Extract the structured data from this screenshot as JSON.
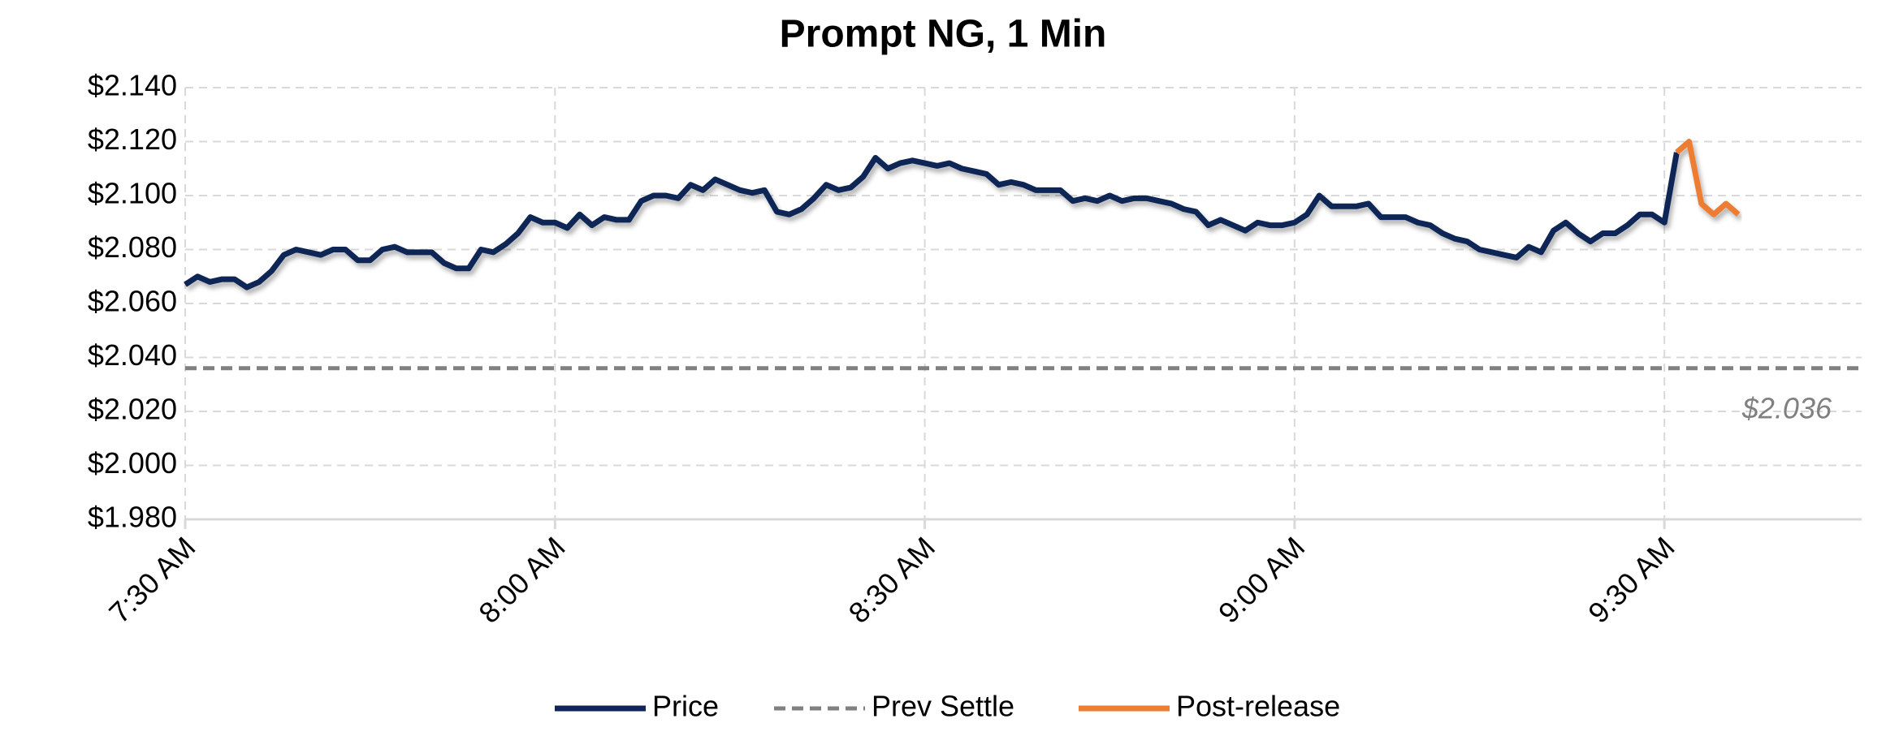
{
  "chart_data": {
    "type": "line",
    "title": "Prompt NG, 1 Min",
    "categories": [
      "7:30 AM",
      null,
      null,
      null,
      null,
      null,
      null,
      null,
      null,
      null,
      null,
      null,
      null,
      null,
      null,
      null,
      null,
      null,
      null,
      null,
      null,
      null,
      null,
      null,
      null,
      null,
      null,
      null,
      null,
      null,
      "8:00 AM",
      null,
      null,
      null,
      null,
      null,
      null,
      null,
      null,
      null,
      null,
      null,
      null,
      null,
      null,
      null,
      null,
      null,
      null,
      null,
      null,
      null,
      null,
      null,
      null,
      null,
      null,
      null,
      null,
      null,
      "8:30 AM",
      null,
      null,
      null,
      null,
      null,
      null,
      null,
      null,
      null,
      null,
      null,
      null,
      null,
      null,
      null,
      null,
      null,
      null,
      null,
      null,
      null,
      null,
      null,
      null,
      null,
      null,
      null,
      null,
      null,
      "9:00 AM",
      null,
      null,
      null,
      null,
      null,
      null,
      null,
      null,
      null,
      null,
      null,
      null,
      null,
      null,
      null,
      null,
      null,
      null,
      null,
      null,
      null,
      null,
      null,
      null,
      null,
      null,
      null,
      null,
      null,
      "9:30 AM",
      null,
      null,
      null,
      null,
      null,
      null,
      null,
      null,
      null,
      null,
      null,
      null,
      null,
      null,
      null,
      null
    ],
    "series": [
      {
        "name": "Price",
        "color": "#0f2557",
        "values": [
          2.067,
          2.07,
          2.068,
          2.069,
          2.069,
          2.066,
          2.068,
          2.072,
          2.078,
          2.08,
          2.079,
          2.078,
          2.08,
          2.08,
          2.076,
          2.076,
          2.08,
          2.081,
          2.079,
          2.079,
          2.079,
          2.075,
          2.073,
          2.073,
          2.08,
          2.079,
          2.082,
          2.086,
          2.092,
          2.09,
          2.09,
          2.088,
          2.093,
          2.089,
          2.092,
          2.091,
          2.091,
          2.098,
          2.1,
          2.1,
          2.099,
          2.104,
          2.102,
          2.106,
          2.104,
          2.102,
          2.101,
          2.102,
          2.094,
          2.093,
          2.095,
          2.099,
          2.104,
          2.102,
          2.103,
          2.107,
          2.114,
          2.11,
          2.112,
          2.113,
          2.112,
          2.111,
          2.112,
          2.11,
          2.109,
          2.108,
          2.104,
          2.105,
          2.104,
          2.102,
          2.102,
          2.102,
          2.098,
          2.099,
          2.098,
          2.1,
          2.098,
          2.099,
          2.099,
          2.098,
          2.097,
          2.095,
          2.094,
          2.089,
          2.091,
          2.089,
          2.087,
          2.09,
          2.089,
          2.089,
          2.09,
          2.093,
          2.1,
          2.096,
          2.096,
          2.096,
          2.097,
          2.092,
          2.092,
          2.092,
          2.09,
          2.089,
          2.086,
          2.084,
          2.083,
          2.08,
          2.079,
          2.078,
          2.077,
          2.081,
          2.079,
          2.087,
          2.09,
          2.086,
          2.083,
          2.086,
          2.086,
          2.089,
          2.093,
          2.093,
          2.09,
          2.116,
          null,
          null,
          null,
          null,
          null,
          null,
          null,
          null,
          null,
          null,
          null,
          null,
          null,
          null,
          null
        ]
      },
      {
        "name": "Prev Settle",
        "color": "#808080",
        "dashed": true,
        "value": 2.036,
        "value_label": "$2.036"
      },
      {
        "name": "Post-release",
        "color": "#ed7d31",
        "values": [
          null,
          null,
          null,
          null,
          null,
          null,
          null,
          null,
          null,
          null,
          null,
          null,
          null,
          null,
          null,
          null,
          null,
          null,
          null,
          null,
          null,
          null,
          null,
          null,
          null,
          null,
          null,
          null,
          null,
          null,
          null,
          null,
          null,
          null,
          null,
          null,
          null,
          null,
          null,
          null,
          null,
          null,
          null,
          null,
          null,
          null,
          null,
          null,
          null,
          null,
          null,
          null,
          null,
          null,
          null,
          null,
          null,
          null,
          null,
          null,
          null,
          null,
          null,
          null,
          null,
          null,
          null,
          null,
          null,
          null,
          null,
          null,
          null,
          null,
          null,
          null,
          null,
          null,
          null,
          null,
          null,
          null,
          null,
          null,
          null,
          null,
          null,
          null,
          null,
          null,
          null,
          null,
          null,
          null,
          null,
          null,
          null,
          null,
          null,
          null,
          null,
          null,
          null,
          null,
          null,
          null,
          null,
          null,
          null,
          null,
          null,
          null,
          null,
          null,
          null,
          null,
          null,
          null,
          null,
          null,
          null,
          2.116,
          2.12,
          2.097,
          2.093,
          2.097,
          2.093,
          null,
          null,
          null,
          null,
          null,
          null,
          null,
          null,
          null,
          null
        ]
      }
    ],
    "ylim": [
      1.98,
      2.14
    ],
    "yticks": [
      {
        "value": 1.98,
        "label": "$1.980"
      },
      {
        "value": 2.0,
        "label": "$2.000"
      },
      {
        "value": 2.02,
        "label": "$2.020"
      },
      {
        "value": 2.04,
        "label": "$2.040"
      },
      {
        "value": 2.06,
        "label": "$2.060"
      },
      {
        "value": 2.08,
        "label": "$2.080"
      },
      {
        "value": 2.1,
        "label": "$2.100"
      },
      {
        "value": 2.12,
        "label": "$2.120"
      },
      {
        "value": 2.14,
        "label": "$2.140"
      }
    ],
    "grid": true,
    "legend": "bottom"
  }
}
